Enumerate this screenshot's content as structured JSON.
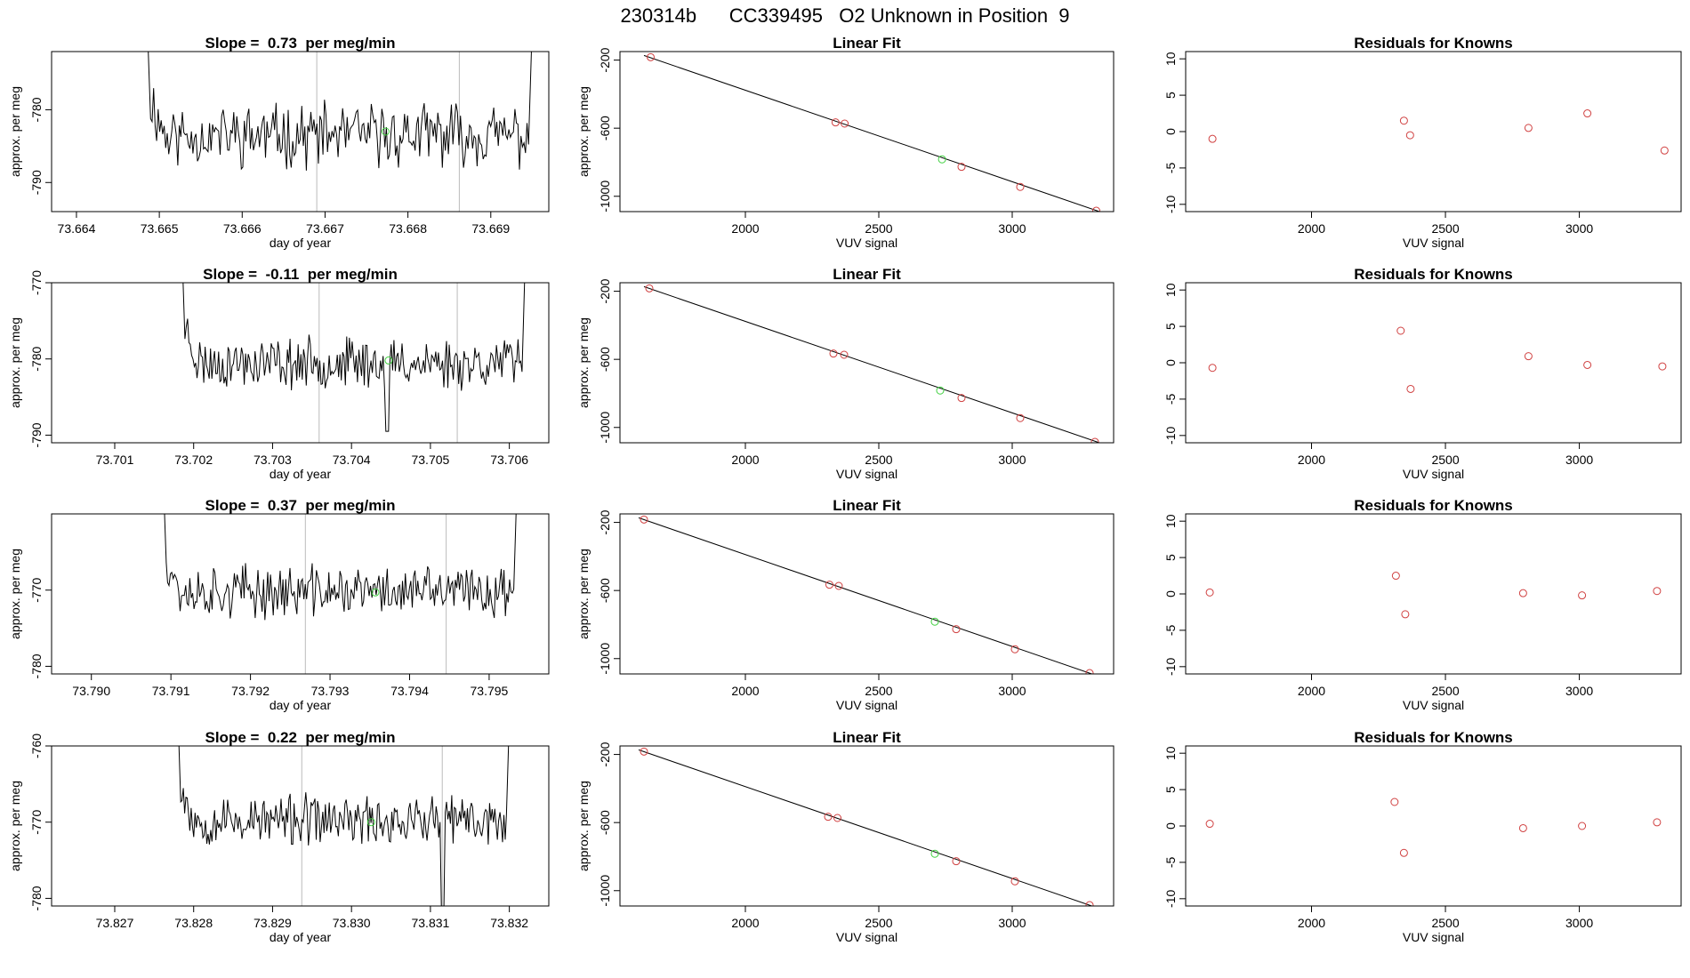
{
  "figure": {
    "title": "230314b      CC339495   O2 Unknown in Position  9"
  },
  "colors": {
    "trace": "#000000",
    "known_points": "#d04040",
    "unknown_point": "#40d040",
    "window_lines": "#bbbbbb",
    "frame": "#000000"
  },
  "chart_data": [
    {
      "type": "line",
      "row": 1,
      "panel": "time-series",
      "title": "Slope =  0.73  per meg/min",
      "xlabel": "day of year",
      "ylabel": "approx. per meg",
      "xlim": [
        73.6637,
        73.6697
      ],
      "ylim": [
        -794,
        -772
      ],
      "xticks": [
        73.664,
        73.665,
        73.666,
        73.667,
        73.668,
        73.669
      ],
      "xtick_labels": [
        "73.664",
        "73.665",
        "73.666",
        "73.667",
        "73.668",
        "73.669"
      ],
      "yticks": [
        -780,
        -790
      ],
      "ytick_labels": [
        "-780",
        "-790"
      ],
      "trace_start": 73.6648,
      "trace_end": 73.66955,
      "trace_mean": -783.5,
      "trace_noise": 3.4,
      "trace_seed": 11,
      "window_lines": [
        73.6669,
        73.66862
      ],
      "unknown_point": [
        73.66773,
        -783.0
      ]
    },
    {
      "type": "scatter",
      "row": 1,
      "panel": "linear-fit",
      "title": "Linear Fit",
      "xlabel": "VUV signal",
      "ylabel": "approx. per meg",
      "xlim": [
        1530,
        3380
      ],
      "ylim": [
        -1090,
        -150
      ],
      "xticks": [
        2000,
        2500,
        3000
      ],
      "xtick_labels": [
        "2000",
        "2500",
        "3000"
      ],
      "yticks": [
        -200,
        -600,
        -1000
      ],
      "ytick_labels": [
        "-200",
        "-600",
        "-1000"
      ],
      "known_points": [
        [
          1645,
          -183
        ],
        [
          2338,
          -566
        ],
        [
          2372,
          -573
        ],
        [
          2810,
          -827
        ],
        [
          3030,
          -945
        ],
        [
          3315,
          -1085
        ]
      ],
      "unknown_point": [
        2737,
        -783
      ],
      "fit_line": [
        [
          1620,
          -173
        ],
        [
          3340,
          -1097
        ]
      ]
    },
    {
      "type": "scatter",
      "row": 1,
      "panel": "residuals",
      "title": "Residuals for Knowns",
      "xlabel": "VUV signal",
      "xlim": [
        1530,
        3380
      ],
      "ylim": [
        -11,
        11
      ],
      "xticks": [
        2000,
        2500,
        3000
      ],
      "xtick_labels": [
        "2000",
        "2500",
        "3000"
      ],
      "yticks": [
        10,
        5,
        0,
        -5,
        -10
      ],
      "ytick_labels": [
        "10",
        "5",
        "0",
        "-5",
        "-10"
      ],
      "points": [
        [
          1630,
          -1.0
        ],
        [
          2345,
          1.5
        ],
        [
          2368,
          -0.5
        ],
        [
          2810,
          0.5
        ],
        [
          3030,
          2.5
        ],
        [
          3318,
          -2.6
        ]
      ]
    },
    {
      "type": "line",
      "row": 2,
      "panel": "time-series",
      "title": "Slope =  -0.11  per meg/min",
      "xlabel": "day of year",
      "ylabel": "approx. per meg",
      "xlim": [
        73.7002,
        73.7065
      ],
      "ylim": [
        -791,
        -770
      ],
      "xticks": [
        73.701,
        73.702,
        73.703,
        73.704,
        73.705,
        73.706
      ],
      "xtick_labels": [
        "73.701",
        "73.702",
        "73.703",
        "73.704",
        "73.705",
        "73.706"
      ],
      "yticks": [
        -770,
        -780,
        -790
      ],
      "ytick_labels": [
        "-770",
        "-780",
        "-790"
      ],
      "trace_start": 73.7018,
      "trace_end": 73.70625,
      "trace_mean": -780.5,
      "trace_noise": 2.6,
      "trace_seed": 23,
      "dip": [
        73.70445,
        -789.5
      ],
      "window_lines": [
        73.70359,
        73.70534
      ],
      "unknown_point": [
        73.70447,
        -780.2
      ]
    },
    {
      "type": "scatter",
      "row": 2,
      "panel": "linear-fit",
      "title": "Linear Fit",
      "xlabel": "VUV signal",
      "ylabel": "approx. per meg",
      "xlim": [
        1530,
        3380
      ],
      "ylim": [
        -1090,
        -150
      ],
      "xticks": [
        2000,
        2500,
        3000
      ],
      "xtick_labels": [
        "2000",
        "2500",
        "3000"
      ],
      "yticks": [
        -200,
        -600,
        -1000
      ],
      "ytick_labels": [
        "-200",
        "-600",
        "-1000"
      ],
      "known_points": [
        [
          1640,
          -183
        ],
        [
          2330,
          -566
        ],
        [
          2370,
          -573
        ],
        [
          2810,
          -827
        ],
        [
          3030,
          -945
        ],
        [
          3310,
          -1085
        ]
      ],
      "unknown_point": [
        2730,
        -783
      ],
      "fit_line": [
        [
          1620,
          -173
        ],
        [
          3340,
          -1097
        ]
      ]
    },
    {
      "type": "scatter",
      "row": 2,
      "panel": "residuals",
      "title": "Residuals for Knowns",
      "xlabel": "VUV signal",
      "xlim": [
        1530,
        3380
      ],
      "ylim": [
        -11,
        11
      ],
      "xticks": [
        2000,
        2500,
        3000
      ],
      "xtick_labels": [
        "2000",
        "2500",
        "3000"
      ],
      "yticks": [
        10,
        5,
        0,
        -5,
        -10
      ],
      "ytick_labels": [
        "10",
        "5",
        "0",
        "-5",
        "-10"
      ],
      "points": [
        [
          1630,
          -0.7
        ],
        [
          2333,
          4.4
        ],
        [
          2370,
          -3.6
        ],
        [
          2810,
          0.9
        ],
        [
          3030,
          -0.3
        ],
        [
          3310,
          -0.5
        ]
      ]
    },
    {
      "type": "line",
      "row": 3,
      "panel": "time-series",
      "title": "Slope =  0.37  per meg/min",
      "xlabel": "day of year",
      "ylabel": "approx. per meg",
      "xlim": [
        73.7895,
        73.79575
      ],
      "ylim": [
        -781,
        -760
      ],
      "xticks": [
        73.79,
        73.791,
        73.792,
        73.793,
        73.794,
        73.795
      ],
      "xtick_labels": [
        "73.790",
        "73.791",
        "73.792",
        "73.793",
        "73.794",
        "73.795"
      ],
      "yticks": [
        -770,
        -780
      ],
      "ytick_labels": [
        "-770",
        "-780"
      ],
      "trace_start": 73.79085,
      "trace_end": 73.7954,
      "trace_mean": -770.2,
      "trace_noise": 2.7,
      "trace_seed": 37,
      "window_lines": [
        73.79269,
        73.79446
      ],
      "unknown_point": [
        73.79357,
        -770.3
      ]
    },
    {
      "type": "scatter",
      "row": 3,
      "panel": "linear-fit",
      "title": "Linear Fit",
      "xlabel": "VUV signal",
      "ylabel": "approx. per meg",
      "xlim": [
        1530,
        3380
      ],
      "ylim": [
        -1090,
        -150
      ],
      "xticks": [
        2000,
        2500,
        3000
      ],
      "xtick_labels": [
        "2000",
        "2500",
        "3000"
      ],
      "yticks": [
        -200,
        -600,
        -1000
      ],
      "ytick_labels": [
        "-200",
        "-600",
        "-1000"
      ],
      "known_points": [
        [
          1620,
          -183
        ],
        [
          2315,
          -566
        ],
        [
          2350,
          -573
        ],
        [
          2790,
          -827
        ],
        [
          3010,
          -945
        ],
        [
          3290,
          -1085
        ]
      ],
      "unknown_point": [
        2710,
        -783
      ],
      "fit_line": [
        [
          1600,
          -173
        ],
        [
          3330,
          -1107
        ]
      ]
    },
    {
      "type": "scatter",
      "row": 3,
      "panel": "residuals",
      "title": "Residuals for Knowns",
      "xlabel": "VUV signal",
      "xlim": [
        1530,
        3380
      ],
      "ylim": [
        -11,
        11
      ],
      "xticks": [
        2000,
        2500,
        3000
      ],
      "xtick_labels": [
        "2000",
        "2500",
        "3000"
      ],
      "yticks": [
        10,
        5,
        0,
        -5,
        -10
      ],
      "ytick_labels": [
        "10",
        "5",
        "0",
        "-5",
        "-10"
      ],
      "points": [
        [
          1620,
          0.2
        ],
        [
          2315,
          2.5
        ],
        [
          2350,
          -2.8
        ],
        [
          2790,
          0.1
        ],
        [
          3010,
          -0.2
        ],
        [
          3290,
          0.4
        ]
      ]
    },
    {
      "type": "line",
      "row": 4,
      "panel": "time-series",
      "title": "Slope =  0.22  per meg/min",
      "xlabel": "day of year",
      "ylabel": "approx. per meg",
      "xlim": [
        73.8262,
        73.8325
      ],
      "ylim": [
        -781,
        -760
      ],
      "xticks": [
        73.827,
        73.828,
        73.829,
        73.83,
        73.831,
        73.832
      ],
      "xtick_labels": [
        "73.827",
        "73.828",
        "73.829",
        "73.830",
        "73.831",
        "73.832"
      ],
      "yticks": [
        -760,
        -770,
        -780
      ],
      "ytick_labels": [
        "-760",
        "-770",
        "-780"
      ],
      "trace_start": 73.82775,
      "trace_end": 73.83205,
      "trace_mean": -769.8,
      "trace_noise": 2.6,
      "trace_seed": 53,
      "dip": [
        73.83115,
        -781
      ],
      "window_lines": [
        73.82937,
        73.83115
      ],
      "unknown_point": [
        73.83025,
        -770.0
      ]
    },
    {
      "type": "scatter",
      "row": 4,
      "panel": "linear-fit",
      "title": "Linear Fit",
      "xlabel": "VUV signal",
      "ylabel": "approx. per meg",
      "xlim": [
        1530,
        3380
      ],
      "ylim": [
        -1090,
        -150
      ],
      "xticks": [
        2000,
        2500,
        3000
      ],
      "xtick_labels": [
        "2000",
        "2500",
        "3000"
      ],
      "yticks": [
        -200,
        -600,
        -1000
      ],
      "ytick_labels": [
        "-200",
        "-600",
        "-1000"
      ],
      "known_points": [
        [
          1620,
          -183
        ],
        [
          2310,
          -566
        ],
        [
          2345,
          -573
        ],
        [
          2790,
          -827
        ],
        [
          3010,
          -945
        ],
        [
          3290,
          -1085
        ]
      ],
      "unknown_point": [
        2710,
        -783
      ],
      "fit_line": [
        [
          1600,
          -173
        ],
        [
          3330,
          -1107
        ]
      ]
    },
    {
      "type": "scatter",
      "row": 4,
      "panel": "residuals",
      "title": "Residuals for Knowns",
      "xlabel": "VUV signal",
      "xlim": [
        1530,
        3380
      ],
      "ylim": [
        -11,
        11
      ],
      "xticks": [
        2000,
        2500,
        3000
      ],
      "xtick_labels": [
        "2000",
        "2500",
        "3000"
      ],
      "yticks": [
        10,
        5,
        0,
        -5,
        -10
      ],
      "ytick_labels": [
        "10",
        "5",
        "0",
        "-5",
        "-10"
      ],
      "points": [
        [
          1620,
          0.3
        ],
        [
          2310,
          3.3
        ],
        [
          2345,
          -3.7
        ],
        [
          2790,
          -0.3
        ],
        [
          3010,
          0.0
        ],
        [
          3290,
          0.5
        ]
      ]
    }
  ]
}
